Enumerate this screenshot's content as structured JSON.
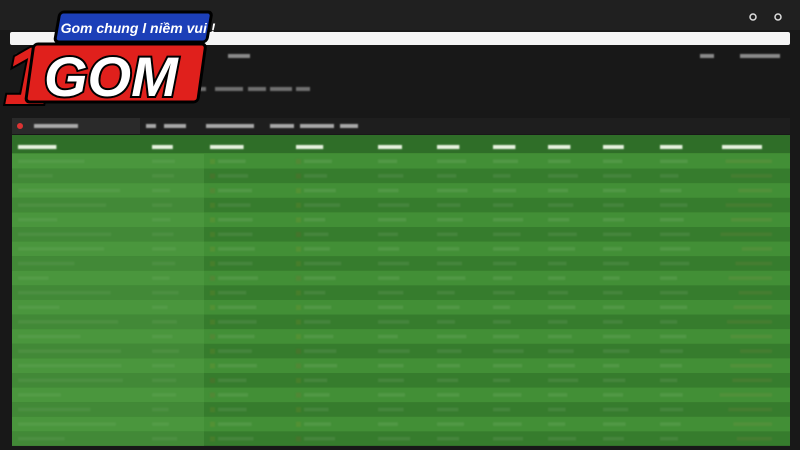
{
  "logo": {
    "number": "1",
    "word": "GOM",
    "tagline": "Gom chung l niềm vui !"
  }
}
